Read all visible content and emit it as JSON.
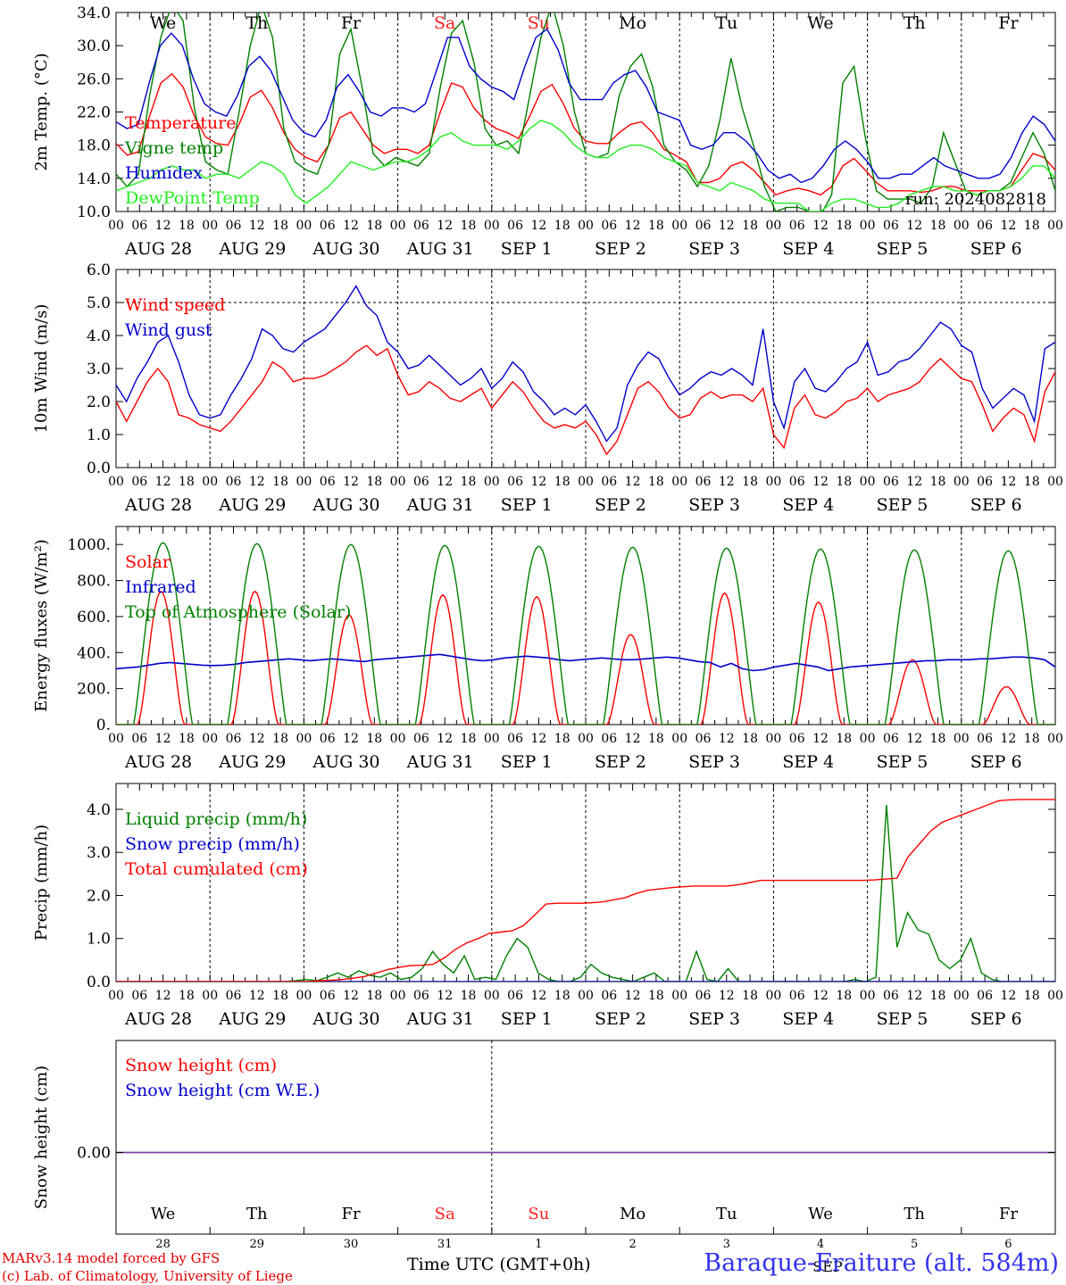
{
  "days_of_week": [
    "We",
    "Th",
    "Fr",
    "Sa",
    "Su",
    "Mo",
    "Tu",
    "We",
    "Th",
    "Fr"
  ],
  "weekend_color": "#ff2020",
  "date_labels": [
    "AUG 28",
    "AUG 29",
    "AUG 30",
    "AUG 31",
    "SEP  1",
    "SEP  2",
    "SEP  3",
    "SEP  4",
    "SEP  5",
    "SEP  6"
  ],
  "hour_labels": [
    "00",
    "06",
    "12",
    "18"
  ],
  "snow_date_numbers": [
    "28",
    "29",
    "30",
    "31",
    "1",
    "2",
    "3",
    "4",
    "5",
    "6"
  ],
  "footer": {
    "model": "MARv3.14 model forced by GFS",
    "lab": "(c) Lab. of Climatology, University of Liege",
    "time_axis": "Time UTC (GMT+0h)",
    "station": "Baraque-Fraiture (alt. 584m)",
    "overlap": "SEP"
  },
  "chart_data": [
    {
      "type": "line",
      "ylabel": "2m Temp. (°C)",
      "ylim": [
        10,
        34
      ],
      "yticks": [
        "10.0",
        "14.0",
        "18.0",
        "22.0",
        "26.0",
        "30.0",
        "34.0"
      ],
      "run_label": "run: 2024082818",
      "series": [
        {
          "name": "Temperature",
          "color": "#ff0000",
          "values": [
            18.2,
            16.8,
            17.2,
            21.5,
            25.5,
            26.6,
            25.0,
            21.5,
            19.0,
            18.2,
            18.0,
            20.5,
            23.8,
            24.6,
            22.5,
            19.5,
            17.5,
            16.5,
            16.0,
            18.0,
            21.3,
            22.0,
            20.0,
            18.0,
            17.0,
            17.5,
            17.5,
            17.0,
            18.0,
            22.0,
            25.5,
            25.0,
            22.5,
            21.0,
            20.0,
            19.5,
            18.8,
            21.5,
            24.5,
            25.3,
            23.0,
            20.0,
            18.5,
            18.2,
            18.2,
            19.5,
            20.5,
            20.8,
            19.5,
            17.5,
            16.8,
            16.0,
            13.5,
            13.5,
            14.0,
            15.5,
            16.0,
            15.0,
            13.5,
            12.0,
            12.5,
            12.8,
            12.5,
            12.0,
            13.0,
            15.5,
            16.4,
            15.0,
            13.5,
            12.5,
            12.5,
            12.5,
            12.3,
            12.5,
            13.0,
            13.0,
            12.5,
            12.5,
            12.5,
            12.5,
            13.0,
            15.0,
            17.0,
            16.5,
            15.0
          ]
        },
        {
          "name": "Vigne temp",
          "color": "#008000",
          "values": [
            14.5,
            13.0,
            14.5,
            24.0,
            31.0,
            35.0,
            33.0,
            22.5,
            16.0,
            15.0,
            14.5,
            22.0,
            30.0,
            35.0,
            31.0,
            20.0,
            16.0,
            15.0,
            14.5,
            18.0,
            29.0,
            32.0,
            25.0,
            17.0,
            15.5,
            16.5,
            16.0,
            15.5,
            17.0,
            25.0,
            31.5,
            33.0,
            28.0,
            20.0,
            18.0,
            18.5,
            17.0,
            24.0,
            31.0,
            35.0,
            30.0,
            22.0,
            17.0,
            16.5,
            17.0,
            24.0,
            27.5,
            29.0,
            25.0,
            18.0,
            16.0,
            15.0,
            13.0,
            15.5,
            21.0,
            28.5,
            22.5,
            18.0,
            13.0,
            10.0,
            10.5,
            10.5,
            10.0,
            9.5,
            12.0,
            25.5,
            27.5,
            19.0,
            12.5,
            11.5,
            11.5,
            11.5,
            11.0,
            13.0,
            19.5,
            16.0,
            12.5,
            12.0,
            12.5,
            12.5,
            13.5,
            16.5,
            19.5,
            17.0,
            12.5
          ]
        },
        {
          "name": "Humidex",
          "color": "#0000cc",
          "values": [
            20.8,
            20.0,
            20.5,
            25.5,
            30.0,
            31.5,
            30.0,
            26.0,
            23.0,
            22.0,
            21.5,
            24.0,
            27.5,
            28.7,
            27.0,
            24.0,
            21.0,
            19.5,
            19.0,
            21.0,
            25.0,
            26.5,
            24.5,
            22.0,
            21.5,
            22.5,
            22.5,
            22.0,
            23.0,
            27.0,
            31.0,
            31.0,
            27.5,
            26.0,
            25.0,
            24.5,
            23.5,
            27.5,
            31.0,
            32.0,
            29.5,
            25.5,
            23.5,
            23.5,
            23.5,
            25.5,
            26.5,
            27.0,
            25.0,
            22.0,
            21.5,
            21.0,
            18.0,
            17.5,
            18.0,
            19.5,
            19.5,
            18.5,
            17.0,
            15.0,
            14.0,
            14.5,
            13.5,
            14.0,
            15.5,
            17.5,
            18.5,
            17.5,
            16.0,
            14.0,
            14.0,
            14.5,
            14.5,
            15.5,
            16.5,
            15.5,
            15.0,
            14.5,
            14.0,
            14.0,
            14.5,
            16.5,
            19.5,
            21.5,
            20.5,
            18.5
          ]
        },
        {
          "name": "DewPoint Temp",
          "color": "#22ee22",
          "values": [
            12.5,
            13.0,
            13.5,
            14.0,
            15.0,
            15.5,
            15.0,
            15.0,
            14.0,
            14.5,
            14.5,
            14.0,
            15.0,
            16.0,
            15.5,
            14.5,
            12.0,
            11.0,
            12.0,
            13.0,
            14.5,
            16.0,
            15.5,
            15.0,
            15.5,
            16.0,
            16.0,
            16.5,
            17.5,
            19.0,
            19.5,
            18.5,
            18.0,
            18.0,
            18.0,
            17.5,
            18.5,
            20.0,
            21.0,
            20.5,
            19.5,
            18.0,
            17.0,
            16.5,
            16.5,
            17.5,
            18.0,
            18.0,
            17.5,
            16.5,
            16.0,
            15.5,
            13.5,
            13.0,
            12.5,
            13.5,
            13.0,
            12.5,
            11.5,
            11.0,
            11.0,
            11.0,
            10.0,
            10.0,
            11.0,
            11.5,
            11.5,
            11.0,
            10.5,
            10.5,
            11.0,
            12.0,
            12.5,
            13.0,
            13.0,
            12.5,
            12.5,
            12.0,
            12.5,
            12.5,
            13.0,
            14.0,
            15.5,
            15.5,
            14.0
          ]
        }
      ]
    },
    {
      "type": "line",
      "ylabel": "10m Wind (m/s)",
      "ylim": [
        0,
        6
      ],
      "yticks": [
        "0.0",
        "1.0",
        "2.0",
        "3.0",
        "4.0",
        "5.0",
        "6.0"
      ],
      "reference_line": 5.0,
      "series": [
        {
          "name": "Wind speed",
          "color": "#ff0000",
          "values": [
            2.0,
            1.4,
            2.0,
            2.6,
            3.0,
            2.6,
            1.6,
            1.5,
            1.3,
            1.2,
            1.1,
            1.4,
            1.8,
            2.2,
            2.6,
            3.2,
            3.0,
            2.6,
            2.7,
            2.7,
            2.8,
            3.0,
            3.2,
            3.5,
            3.7,
            3.4,
            3.6,
            2.8,
            2.2,
            2.3,
            2.6,
            2.4,
            2.1,
            2.0,
            2.2,
            2.4,
            1.8,
            2.2,
            2.6,
            2.3,
            1.8,
            1.4,
            1.2,
            1.3,
            1.2,
            1.4,
            1.0,
            0.4,
            0.8,
            1.6,
            2.4,
            2.6,
            2.3,
            1.8,
            1.5,
            1.6,
            2.1,
            2.3,
            2.1,
            2.2,
            2.2,
            2.0,
            2.4,
            1.0,
            0.6,
            1.8,
            2.2,
            1.6,
            1.5,
            1.7,
            2.0,
            2.1,
            2.4,
            2.0,
            2.2,
            2.3,
            2.4,
            2.6,
            3.0,
            3.3,
            3.0,
            2.7,
            2.6,
            1.9,
            1.1,
            1.5,
            1.8,
            1.6,
            0.8,
            2.3,
            2.9
          ]
        },
        {
          "name": "Wind gust",
          "color": "#0000cc",
          "values": [
            2.5,
            2.0,
            2.7,
            3.2,
            3.8,
            4.0,
            3.2,
            2.2,
            1.6,
            1.5,
            1.6,
            2.2,
            2.7,
            3.3,
            4.2,
            4.0,
            3.6,
            3.5,
            3.8,
            4.0,
            4.2,
            4.6,
            5.0,
            5.5,
            4.9,
            4.6,
            3.8,
            3.5,
            3.0,
            3.1,
            3.4,
            3.1,
            2.8,
            2.5,
            2.7,
            3.0,
            2.4,
            2.7,
            3.2,
            2.9,
            2.3,
            2.0,
            1.6,
            1.8,
            1.6,
            1.9,
            1.4,
            0.8,
            1.2,
            2.5,
            3.1,
            3.5,
            3.3,
            2.7,
            2.2,
            2.4,
            2.7,
            2.9,
            2.8,
            3.0,
            2.8,
            2.5,
            4.2,
            2.0,
            1.2,
            2.6,
            3.0,
            2.4,
            2.3,
            2.6,
            3.0,
            3.2,
            3.8,
            2.8,
            2.9,
            3.2,
            3.3,
            3.6,
            4.0,
            4.4,
            4.2,
            3.7,
            3.5,
            2.4,
            1.8,
            2.1,
            2.4,
            2.2,
            1.4,
            3.6,
            3.8
          ]
        }
      ]
    },
    {
      "type": "line",
      "ylabel": "Energy fluxes (W/m²)",
      "ylim": [
        0,
        1100
      ],
      "yticks": [
        "0.",
        "200.",
        "400.",
        "600.",
        "800.",
        "1000."
      ],
      "series": [
        {
          "name": "Solar",
          "color": "#ff0000",
          "days_peak": [
            740,
            740,
            610,
            720,
            710,
            500,
            730,
            680,
            360,
            210
          ]
        },
        {
          "name": "Infrared",
          "color": "#0000cc",
          "values": [
            310,
            315,
            320,
            330,
            340,
            345,
            340,
            335,
            330,
            328,
            330,
            335,
            345,
            350,
            355,
            360,
            365,
            360,
            355,
            360,
            365,
            360,
            355,
            350,
            360,
            365,
            370,
            375,
            380,
            385,
            390,
            380,
            370,
            360,
            355,
            360,
            370,
            375,
            380,
            375,
            370,
            360,
            355,
            360,
            365,
            370,
            365,
            360,
            360,
            365,
            370,
            375,
            370,
            360,
            350,
            345,
            320,
            340,
            310,
            300,
            305,
            320,
            330,
            340,
            330,
            320,
            300,
            310,
            320,
            325,
            330,
            335,
            340,
            345,
            350,
            355,
            355,
            360,
            360,
            360,
            365,
            365,
            370,
            375,
            375,
            370,
            360,
            320
          ]
        },
        {
          "name": "Top of Atmosphere (Solar)",
          "color": "#008000",
          "days_peak": [
            1010,
            1005,
            1000,
            995,
            990,
            985,
            980,
            975,
            970,
            965
          ]
        }
      ]
    },
    {
      "type": "line",
      "ylabel": "Precip (mm/h)",
      "ylim": [
        0,
        4.6
      ],
      "yticks": [
        "0.0",
        "1.0",
        "2.0",
        "3.0",
        "4.0"
      ],
      "series": [
        {
          "name": "Liquid precip (mm/h)",
          "color": "#008000",
          "values": [
            0,
            0,
            0,
            0,
            0,
            0,
            0,
            0,
            0,
            0,
            0,
            0,
            0,
            0,
            0,
            0,
            0,
            0.02,
            0.05,
            0.02,
            0.1,
            0.2,
            0.1,
            0.25,
            0.15,
            0.1,
            0.2,
            0.05,
            0.1,
            0.3,
            0.7,
            0.4,
            0.2,
            0.6,
            0.05,
            0.1,
            0.05,
            0.6,
            1.0,
            0.8,
            0.2,
            0.05,
            0,
            0,
            0.1,
            0.4,
            0.2,
            0.1,
            0.05,
            0,
            0.1,
            0.2,
            0,
            0,
            0,
            0.7,
            0.05,
            0,
            0.3,
            0,
            0,
            0,
            0,
            0,
            0,
            0,
            0,
            0,
            0,
            0,
            0.05,
            0,
            0.1,
            4.1,
            0.8,
            1.6,
            1.2,
            1.1,
            0.5,
            0.3,
            0.5,
            1.0,
            0.2,
            0.05,
            0,
            0,
            0,
            0,
            0,
            0
          ]
        },
        {
          "name": "Snow precip (mm/h)",
          "color": "#0000cc",
          "values": [
            0
          ]
        },
        {
          "name": "Total cumulated (cm)",
          "color": "#ff0000",
          "values": [
            0,
            0,
            0,
            0,
            0,
            0,
            0,
            0,
            0,
            0,
            0,
            0,
            0,
            0,
            0,
            0,
            0,
            0,
            0.02,
            0.03,
            0.05,
            0.08,
            0.12,
            0.2,
            0.28,
            0.33,
            0.37,
            0.38,
            0.4,
            0.55,
            0.75,
            0.9,
            1.0,
            1.12,
            1.15,
            1.18,
            1.3,
            1.55,
            1.8,
            1.82,
            1.82,
            1.82,
            1.83,
            1.85,
            1.9,
            1.95,
            2.05,
            2.12,
            2.15,
            2.18,
            2.2,
            2.22,
            2.22,
            2.22,
            2.22,
            2.25,
            2.3,
            2.35,
            2.35,
            2.35,
            2.35,
            2.35,
            2.35,
            2.35,
            2.35,
            2.35,
            2.35,
            2.36,
            2.38,
            2.4,
            2.9,
            3.2,
            3.5,
            3.7,
            3.8,
            3.9,
            4.0,
            4.1,
            4.2,
            4.22,
            4.23,
            4.23,
            4.23,
            4.23
          ]
        }
      ]
    },
    {
      "type": "line",
      "ylabel": "Snow height (cm)",
      "yticks": [
        "0.00"
      ],
      "series": [
        {
          "name": "Snow height (cm)",
          "color": "#ff0000",
          "values": [
            0
          ]
        },
        {
          "name": "Snow height (cm W.E.)",
          "color": "#0000cc",
          "values": [
            0
          ]
        }
      ],
      "line_color": "#8040a0"
    }
  ]
}
